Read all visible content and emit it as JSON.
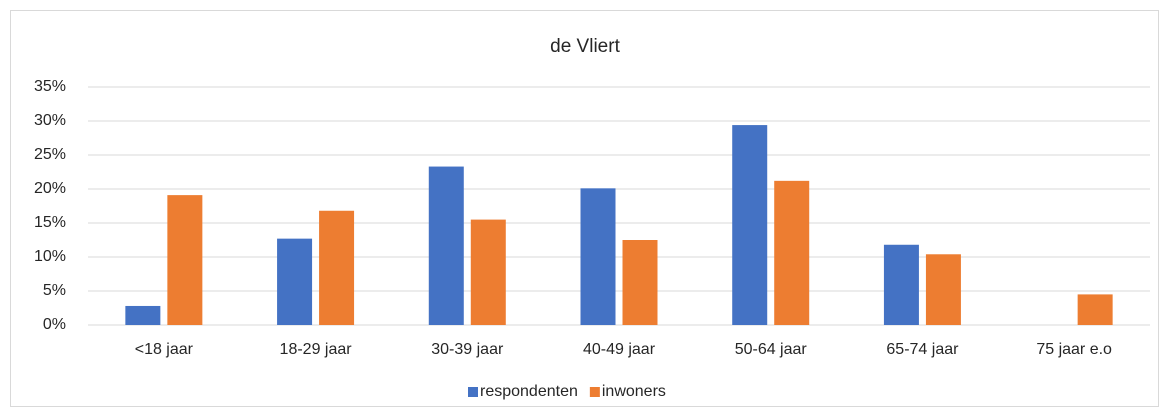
{
  "chart_data": {
    "type": "bar",
    "title": "de Vliert",
    "categories": [
      "<18 jaar",
      "18-29 jaar",
      "30-39 jaar",
      "40-49 jaar",
      "50-64 jaar",
      "65-74 jaar",
      "75 jaar e.o"
    ],
    "series": [
      {
        "name": "respondenten",
        "color": "#4472c4",
        "values": [
          2.8,
          12.7,
          23.3,
          20.1,
          29.4,
          11.8,
          0
        ]
      },
      {
        "name": "inwoners",
        "color": "#ed7d31",
        "values": [
          19.1,
          16.8,
          15.5,
          12.5,
          21.2,
          10.4,
          4.5
        ]
      }
    ],
    "ylim": [
      0,
      35
    ],
    "yticks": [
      {
        "value": 0,
        "label": "0%"
      },
      {
        "value": 5,
        "label": "5%"
      },
      {
        "value": 10,
        "label": "10%"
      },
      {
        "value": 15,
        "label": "15%"
      },
      {
        "value": 20,
        "label": "20%"
      },
      {
        "value": 25,
        "label": "25%"
      },
      {
        "value": 30,
        "label": "30%"
      },
      {
        "value": 35,
        "label": "35%"
      }
    ],
    "grid": true,
    "legend": "bottom"
  }
}
